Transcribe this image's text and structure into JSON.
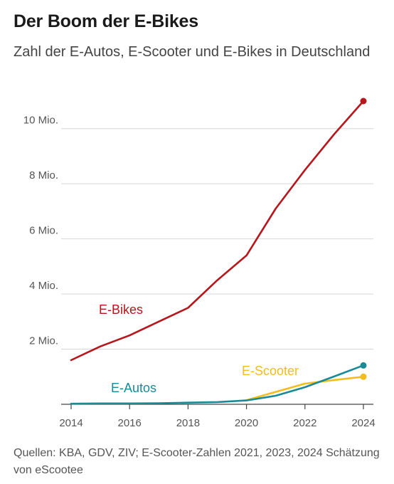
{
  "header": {
    "title": "Der Boom der E-Bikes",
    "subtitle": "Zahl der E-Autos, E-Scooter und E-Bikes in Deutschland"
  },
  "source": "Quellen: KBA, GDV, ZIV; E-Scooter-Zahlen 2021, 2023, 2024 Schätzung von eScootee",
  "colors": {
    "ebikes": "#b5171d",
    "escooter": "#f2bd1d",
    "eautos": "#1a8a99",
    "grid": "#d6d6d6",
    "axis": "#444444",
    "tick_text": "#555555"
  },
  "chart_data": {
    "type": "line",
    "title": "Der Boom der E-Bikes",
    "subtitle": "Zahl der E-Autos, E-Scooter und E-Bikes in Deutschland",
    "xlabel": "",
    "ylabel": "",
    "xlim": [
      2014,
      2024
    ],
    "ylim": [
      0,
      11
    ],
    "x_ticks": [
      2014,
      2016,
      2018,
      2020,
      2022,
      2024
    ],
    "y_ticks": [
      2,
      4,
      6,
      8,
      10
    ],
    "y_tick_labels": [
      "2 Mio.",
      "4 Mio.",
      "6 Mio.",
      "8 Mio.",
      "10 Mio."
    ],
    "grid": true,
    "series": [
      {
        "name": "E-Bikes",
        "color": "#b5171d",
        "x": [
          2014,
          2015,
          2016,
          2017,
          2018,
          2019,
          2020,
          2021,
          2022,
          2023,
          2024
        ],
        "y": [
          1.6,
          2.1,
          2.5,
          3.0,
          3.5,
          4.5,
          5.4,
          7.1,
          8.5,
          9.8,
          11.0
        ]
      },
      {
        "name": "E-Scooter",
        "color": "#f2bd1d",
        "x": [
          2020,
          2021,
          2022,
          2023,
          2024
        ],
        "y": [
          0.15,
          0.45,
          0.75,
          0.88,
          1.0
        ]
      },
      {
        "name": "E-Autos",
        "color": "#1a8a99",
        "x": [
          2014,
          2015,
          2016,
          2017,
          2018,
          2019,
          2020,
          2021,
          2022,
          2023,
          2024
        ],
        "y": [
          0.02,
          0.03,
          0.03,
          0.04,
          0.06,
          0.08,
          0.14,
          0.31,
          0.62,
          1.01,
          1.41
        ]
      }
    ]
  }
}
